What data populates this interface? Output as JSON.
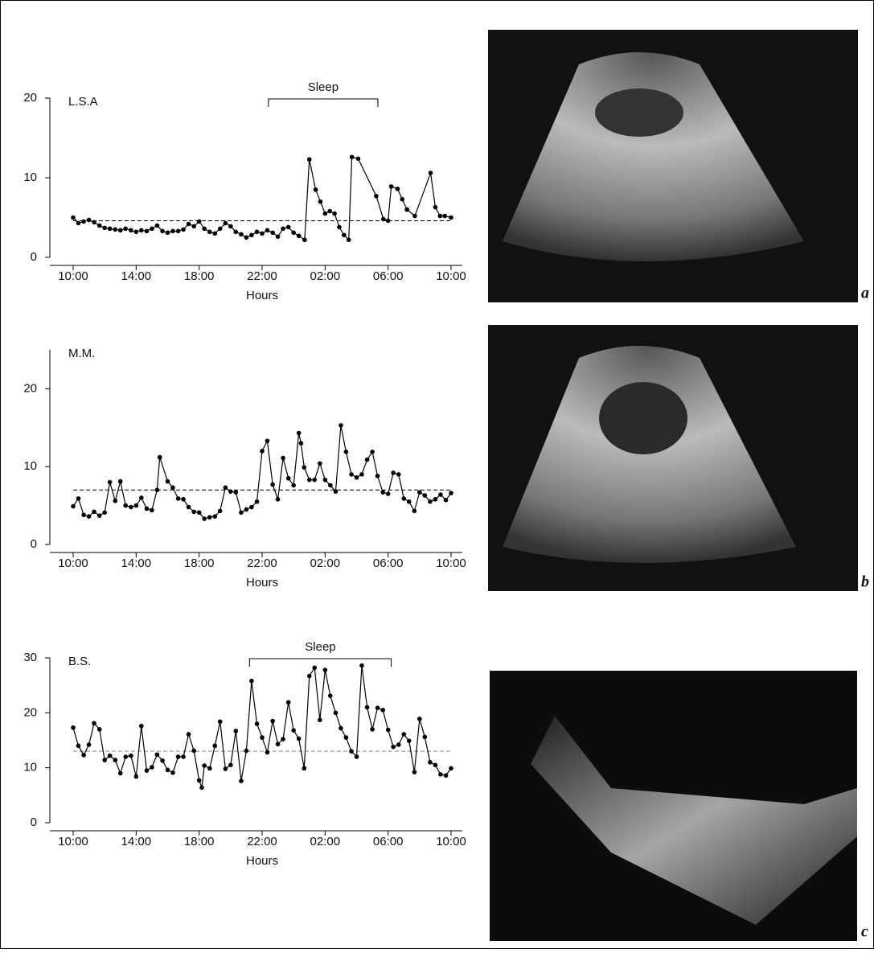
{
  "chart_data": [
    {
      "type": "line",
      "label": "L.S.A",
      "x_label": "Hours",
      "color": "#000",
      "xlim": [
        0,
        24
      ],
      "xticks": [
        {
          "value": 0,
          "label": "10:00"
        },
        {
          "value": 4,
          "label": "14:00"
        },
        {
          "value": 8,
          "label": "18:00"
        },
        {
          "value": 12,
          "label": "22:00"
        },
        {
          "value": 16,
          "label": "02:00"
        },
        {
          "value": 20,
          "label": "06:00"
        },
        {
          "value": 24,
          "label": "10:00"
        }
      ],
      "ylim": [
        0,
        20
      ],
      "yticks": [
        0,
        10,
        20
      ],
      "reference_line": 4.6,
      "reference_color": "#000",
      "annotations": [
        {
          "text": "Sleep",
          "start": 12.4,
          "end": 19.35
        }
      ],
      "x": [
        0,
        0.33,
        0.67,
        1,
        1.33,
        1.67,
        2,
        2.33,
        2.67,
        3,
        3.33,
        3.67,
        4,
        4.33,
        4.67,
        5,
        5.33,
        5.67,
        6,
        6.33,
        6.67,
        7,
        7.33,
        7.67,
        8,
        8.33,
        8.67,
        9,
        9.33,
        9.67,
        10,
        10.33,
        10.67,
        11,
        11.33,
        11.67,
        12,
        12.33,
        12.67,
        13,
        13.33,
        13.67,
        14,
        14.33,
        14.7,
        15,
        15.4,
        15.7,
        16,
        16.3,
        16.6,
        16.9,
        17.2,
        17.5,
        17.7,
        18.1,
        19.25,
        19.7,
        20,
        20.2,
        20.6,
        20.9,
        21.2,
        21.7,
        22.7,
        23,
        23.3,
        23.6,
        24
      ],
      "values": [
        5,
        4.3,
        4.5,
        4.7,
        4.4,
        4,
        3.7,
        3.6,
        3.5,
        3.4,
        3.6,
        3.4,
        3.2,
        3.4,
        3.3,
        3.6,
        4,
        3.3,
        3.1,
        3.3,
        3.3,
        3.5,
        4.2,
        3.9,
        4.5,
        3.6,
        3.2,
        3,
        3.6,
        4.3,
        3.9,
        3.2,
        2.9,
        2.5,
        2.8,
        3.2,
        3,
        3.4,
        3.1,
        2.6,
        3.6,
        3.8,
        3.1,
        2.7,
        2.2,
        12.3,
        8.5,
        7,
        5.5,
        5.8,
        5.5,
        3.8,
        2.8,
        2.2,
        12.6,
        12.4,
        7.7,
        4.8,
        4.6,
        8.9,
        8.6,
        7.3,
        6,
        5.2,
        10.6,
        6.3,
        5.2,
        5.2,
        5
      ]
    },
    {
      "type": "line",
      "label": "M.M.",
      "x_label": "Hours",
      "color": "#000",
      "xlim": [
        0,
        24
      ],
      "xticks": [
        {
          "value": 0,
          "label": "10:00"
        },
        {
          "value": 4,
          "label": "14:00"
        },
        {
          "value": 8,
          "label": "18:00"
        },
        {
          "value": 12,
          "label": "22:00"
        },
        {
          "value": 16,
          "label": "02:00"
        },
        {
          "value": 20,
          "label": "06:00"
        },
        {
          "value": 24,
          "label": "10:00"
        }
      ],
      "ylim": [
        0,
        25
      ],
      "yticks": [
        0,
        10,
        20
      ],
      "reference_line": 7,
      "reference_color": "#000",
      "x": [
        0,
        0.33,
        0.67,
        1,
        1.33,
        1.67,
        2,
        2.33,
        2.67,
        3,
        3.33,
        3.67,
        4,
        4.33,
        4.67,
        5,
        5.33,
        5.5,
        6,
        6.33,
        6.67,
        7,
        7.33,
        7.67,
        8,
        8.33,
        8.67,
        9,
        9.33,
        9.67,
        10,
        10.33,
        10.67,
        11,
        11.33,
        11.67,
        12,
        12.33,
        12.67,
        13,
        13.33,
        13.67,
        14,
        14.33,
        14.47,
        14.67,
        15,
        15.33,
        15.67,
        16,
        16.33,
        16.67,
        17,
        17.33,
        17.67,
        18,
        18.33,
        18.67,
        19,
        19.33,
        19.67,
        20,
        20.33,
        20.67,
        21,
        21.33,
        21.67,
        22,
        22.33,
        22.67,
        23,
        23.33,
        23.67,
        24
      ],
      "values": [
        4.9,
        5.9,
        3.8,
        3.6,
        4.2,
        3.7,
        4.1,
        8,
        5.6,
        8.1,
        5,
        4.8,
        5,
        6,
        4.6,
        4.4,
        7,
        11.2,
        8.1,
        7.3,
        5.9,
        5.8,
        4.8,
        4.2,
        4.1,
        3.3,
        3.5,
        3.6,
        4.3,
        7.3,
        6.8,
        6.7,
        4.1,
        4.5,
        4.8,
        5.5,
        12,
        13.3,
        7.7,
        5.8,
        11.1,
        8.5,
        7.6,
        14.3,
        13,
        9.9,
        8.3,
        8.3,
        10.4,
        8.3,
        7.6,
        6.8,
        15.3,
        11.9,
        9,
        8.6,
        9,
        10.9,
        11.9,
        8.8,
        6.7,
        6.5,
        9.2,
        9,
        5.9,
        5.5,
        4.3,
        6.7,
        6.3,
        5.5,
        5.8,
        6.4,
        5.7,
        6.6
      ]
    },
    {
      "type": "line",
      "label": "B.S.",
      "x_label": "Hours",
      "color": "#000",
      "xlim": [
        0,
        24
      ],
      "xticks": [
        {
          "value": 0,
          "label": "10:00"
        },
        {
          "value": 4,
          "label": "14:00"
        },
        {
          "value": 8,
          "label": "18:00"
        },
        {
          "value": 12,
          "label": "22:00"
        },
        {
          "value": 16,
          "label": "02:00"
        },
        {
          "value": 20,
          "label": "06:00"
        },
        {
          "value": 24,
          "label": "10:00"
        }
      ],
      "ylim": [
        0,
        30
      ],
      "yticks": [
        0,
        10,
        20,
        30
      ],
      "reference_line": 13,
      "reference_color": "#888",
      "annotations": [
        {
          "text": "Sleep",
          "start": 11.2,
          "end": 20.2
        }
      ],
      "x": [
        0,
        0.33,
        0.67,
        1,
        1.33,
        1.67,
        2,
        2.33,
        2.67,
        3,
        3.33,
        3.67,
        4,
        4.33,
        4.67,
        5,
        5.33,
        5.67,
        6,
        6.33,
        6.67,
        7,
        7.33,
        7.67,
        8,
        8.17,
        8.33,
        8.67,
        9,
        9.33,
        9.67,
        10,
        10.33,
        10.67,
        11,
        11.33,
        11.67,
        12,
        12.33,
        12.67,
        13,
        13.33,
        13.67,
        14,
        14.33,
        14.67,
        15,
        15.33,
        15.67,
        16,
        16.33,
        16.67,
        17,
        17.33,
        17.67,
        18,
        18.33,
        18.67,
        19,
        19.33,
        19.67,
        20,
        20.33,
        20.67,
        21,
        21.33,
        21.67,
        22,
        22.33,
        22.67,
        23,
        23.33,
        23.67,
        24
      ],
      "values": [
        17.3,
        14,
        12.3,
        14.2,
        18.1,
        17,
        11.4,
        12.2,
        11.4,
        9,
        12,
        12.2,
        8.4,
        17.6,
        9.5,
        10.1,
        12.4,
        11.3,
        9.6,
        9.1,
        12,
        12,
        16.1,
        13.1,
        7.7,
        6.4,
        10.4,
        9.9,
        14,
        18.4,
        9.8,
        10.5,
        16.7,
        7.6,
        13.1,
        25.8,
        18,
        15.5,
        12.8,
        18.5,
        14.3,
        15.2,
        21.9,
        16.8,
        15.3,
        9.9,
        26.7,
        28.2,
        18.7,
        27.8,
        23.1,
        20,
        17.2,
        15.5,
        13,
        12,
        28.6,
        21,
        17,
        20.9,
        20.5,
        16.9,
        13.8,
        14.2,
        16.1,
        14.9,
        9.2,
        18.9,
        15.6,
        11,
        10.5,
        8.8,
        8.6,
        9.9
      ]
    }
  ],
  "panels": [
    "a",
    "b",
    "c"
  ]
}
